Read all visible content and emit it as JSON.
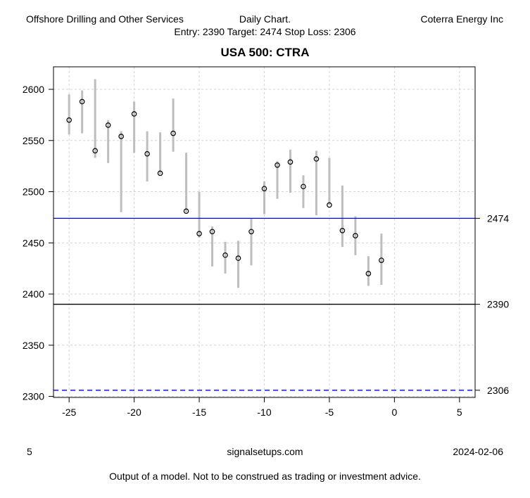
{
  "header": {
    "sector": "Offshore Drilling and Other Services",
    "chart_type": "Daily Chart.",
    "company": "Coterra Energy Inc",
    "levels_line": "Entry: 2390 Target: 2474 Stop Loss: 2306",
    "title": "USA 500: CTRA"
  },
  "footer": {
    "page_number": "5",
    "site": "signalsetups.com",
    "date": "2024-02-06",
    "disclaimer": "Output of a model. Not to be construed as trading or investment advice."
  },
  "chart_data": {
    "type": "hlc_bar",
    "title": "USA 500: CTRA",
    "xlabel": "",
    "ylabel": "",
    "xlim": [
      -26.2,
      6.2
    ],
    "ylim": [
      2299,
      2622
    ],
    "x_ticks": [
      -25,
      -20,
      -15,
      -10,
      -5,
      0,
      5
    ],
    "y_ticks": [
      2300,
      2350,
      2400,
      2450,
      2500,
      2550,
      2600
    ],
    "grid": "on",
    "series": [
      {
        "name": "price",
        "bars": [
          {
            "t": -25,
            "high": 2595,
            "low": 2556,
            "close": 2570
          },
          {
            "t": -24,
            "high": 2599,
            "low": 2557,
            "close": 2588
          },
          {
            "t": -23,
            "high": 2610,
            "low": 2533,
            "close": 2540
          },
          {
            "t": -22,
            "high": 2570,
            "low": 2528,
            "close": 2565
          },
          {
            "t": -21,
            "high": 2559,
            "low": 2480,
            "close": 2554
          },
          {
            "t": -20,
            "high": 2588,
            "low": 2538,
            "close": 2576
          },
          {
            "t": -19,
            "high": 2559,
            "low": 2510,
            "close": 2537
          },
          {
            "t": -18,
            "high": 2558,
            "low": 2517,
            "close": 2518
          },
          {
            "t": -17,
            "high": 2591,
            "low": 2539,
            "close": 2557
          },
          {
            "t": -16,
            "high": 2538,
            "low": 2480,
            "close": 2481
          },
          {
            "t": -15,
            "high": 2500,
            "low": 2455,
            "close": 2459
          },
          {
            "t": -14,
            "high": 2466,
            "low": 2427,
            "close": 2461
          },
          {
            "t": -13,
            "high": 2451,
            "low": 2420,
            "close": 2438
          },
          {
            "t": -12,
            "high": 2452,
            "low": 2406,
            "close": 2435
          },
          {
            "t": -11,
            "high": 2474,
            "low": 2428,
            "close": 2461
          },
          {
            "t": -10,
            "high": 2510,
            "low": 2478,
            "close": 2503
          },
          {
            "t": -9,
            "high": 2530,
            "low": 2493,
            "close": 2526
          },
          {
            "t": -8,
            "high": 2541,
            "low": 2499,
            "close": 2529
          },
          {
            "t": -7,
            "high": 2516,
            "low": 2484,
            "close": 2505
          },
          {
            "t": -6,
            "high": 2540,
            "low": 2477,
            "close": 2532
          },
          {
            "t": -5,
            "high": 2533,
            "low": 2487,
            "close": 2487
          },
          {
            "t": -4,
            "high": 2506,
            "low": 2446,
            "close": 2462
          },
          {
            "t": -3,
            "high": 2476,
            "low": 2438,
            "close": 2457
          },
          {
            "t": -2,
            "high": 2437,
            "low": 2408,
            "close": 2420
          },
          {
            "t": -1,
            "high": 2459,
            "low": 2409,
            "close": 2433
          }
        ]
      }
    ],
    "levels": [
      {
        "name": "target",
        "value": 2474,
        "label": "2474",
        "color": "#0000ee",
        "style": "solid"
      },
      {
        "name": "entry",
        "value": 2390,
        "label": "2390",
        "color": "#000000",
        "style": "solid"
      },
      {
        "name": "stop_loss",
        "value": 2306,
        "label": "2306",
        "color": "#0000ee",
        "style": "dashed"
      }
    ],
    "colors": {
      "bar": "#bebebe",
      "close_marker": "#000000",
      "grid": "#d3d3d3",
      "axis": "#000000"
    }
  }
}
